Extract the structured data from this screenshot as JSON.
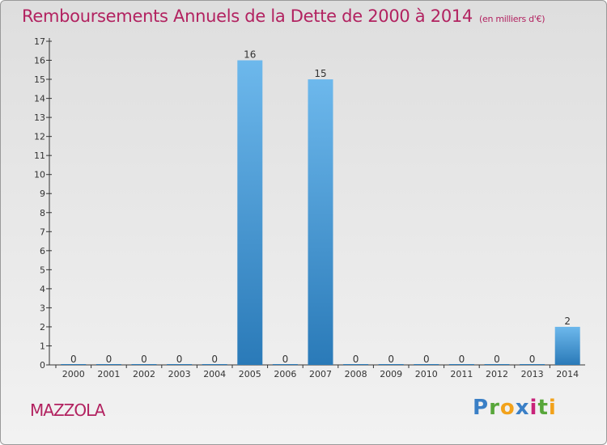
{
  "title": "Remboursements Annuels de la Dette de 2000 à 2014",
  "unit": "(en milliers d'€)",
  "commune": "MAZZOLA",
  "brand": {
    "name": "Proxiti",
    "letters": [
      "P",
      "r",
      "o",
      "x",
      "i",
      "t",
      "i"
    ]
  },
  "colors": {
    "title": "#b22260",
    "bar_top": "#6db8ec",
    "bar_bottom": "#2a7ab8"
  },
  "chart_data": {
    "type": "bar",
    "categories": [
      "2000",
      "2001",
      "2002",
      "2003",
      "2004",
      "2005",
      "2006",
      "2007",
      "2008",
      "2009",
      "2010",
      "2011",
      "2012",
      "2013",
      "2014"
    ],
    "values": [
      0,
      0,
      0,
      0,
      0,
      16,
      0,
      15,
      0,
      0,
      0,
      0,
      0,
      0,
      2
    ],
    "data_labels": [
      "0",
      "0",
      "0",
      "0",
      "0",
      "16",
      "0",
      "15",
      "0",
      "0",
      "0",
      "0",
      "0",
      "0",
      "2"
    ],
    "y_ticks": [
      "0",
      "1",
      "2",
      "3",
      "4",
      "5",
      "6",
      "7",
      "8",
      "9",
      "10",
      "11",
      "12",
      "13",
      "14",
      "15",
      "16",
      "17"
    ],
    "ylim": [
      0,
      17
    ],
    "grid": false,
    "legend": "none"
  }
}
